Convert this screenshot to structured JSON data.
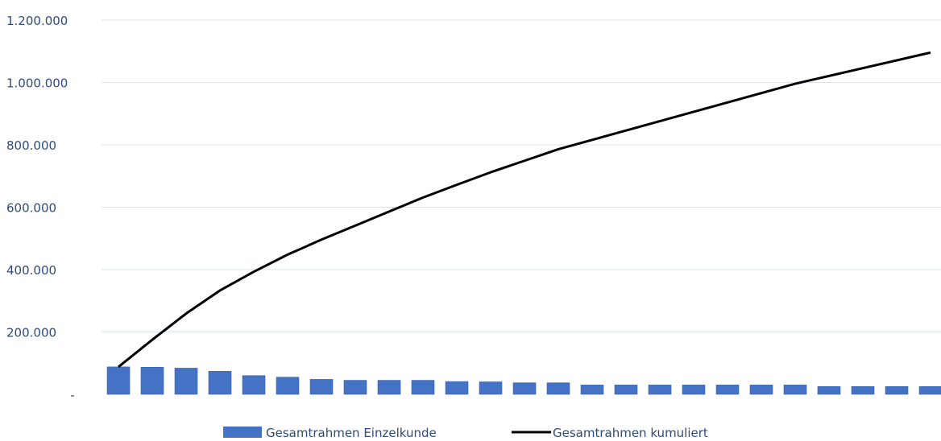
{
  "chart_data": {
    "type": "bar",
    "title": "",
    "xlabel": "",
    "ylabel": "",
    "ylim": [
      0,
      1200000
    ],
    "y_ticks": [
      {
        "value": 0,
        "label": "-"
      },
      {
        "value": 200000,
        "label": "200.000"
      },
      {
        "value": 400000,
        "label": "400.000"
      },
      {
        "value": 600000,
        "label": "600.000"
      },
      {
        "value": 800000,
        "label": "800.000"
      },
      {
        "value": 1000000,
        "label": "1.000.000"
      },
      {
        "value": 1200000,
        "label": "1.200.000"
      }
    ],
    "grid": true,
    "legend": "bottom",
    "series": [
      {
        "name": "Gesamtrahmen Einzelkunde",
        "type": "bar",
        "color": "#4472c4",
        "values": [
          88000,
          87000,
          84000,
          74000,
          60000,
          55000,
          48000,
          45000,
          45000,
          45000,
          41000,
          40000,
          37000,
          37000,
          30000,
          30000,
          30000,
          30000,
          30000,
          30000,
          30000,
          25000,
          25000,
          25000,
          25000
        ]
      },
      {
        "name": "Gesamtrahmen kumuliert",
        "type": "line",
        "color": "#000000",
        "values": [
          88000,
          175000,
          259000,
          333000,
          393000,
          448000,
          496000,
          541000,
          586000,
          631000,
          672000,
          712000,
          749000,
          786000,
          816000,
          846000,
          876000,
          906000,
          936000,
          966000,
          996000,
          1021000,
          1046000,
          1071000,
          1096000
        ]
      }
    ]
  }
}
